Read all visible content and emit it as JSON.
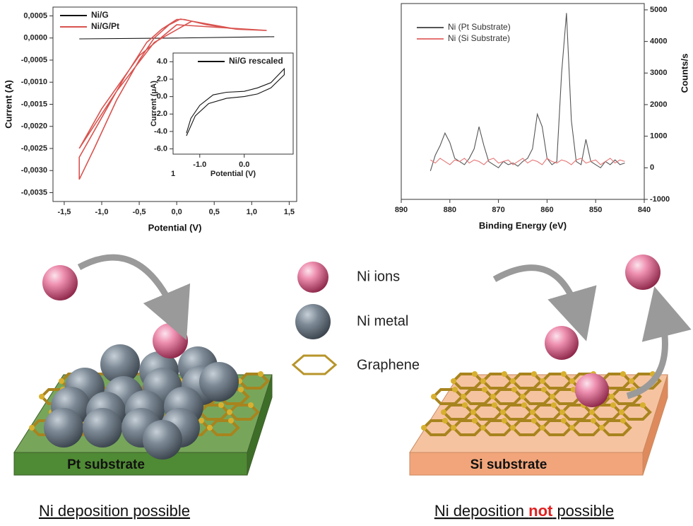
{
  "chart_data": [
    {
      "type": "line",
      "xlabel": "Potential (V)",
      "ylabel": "Current (A)",
      "xlim": [
        -1.65,
        1.6
      ],
      "xticks": [
        {
          "value": -1.5,
          "label": "-1,5"
        },
        {
          "value": -1.0,
          "label": "-1,0"
        },
        {
          "value": -0.5,
          "label": "-0,5"
        },
        {
          "value": 0,
          "label": "0,0"
        },
        {
          "value": 0.5,
          "label": "0,5"
        },
        {
          "value": 1.0,
          "label": "1,0"
        },
        {
          "value": 1.5,
          "label": "1,5"
        }
      ],
      "ylim": [
        -0.0037,
        0.0007
      ],
      "yticks": [
        {
          "value": 0.0005,
          "label": "0,0005"
        },
        {
          "value": 0,
          "label": "0,0000"
        },
        {
          "value": -0.0005,
          "label": "-0,0005"
        },
        {
          "value": -0.001,
          "label": "-0,0010"
        },
        {
          "value": -0.0015,
          "label": "-0,0015"
        },
        {
          "value": -0.002,
          "label": "-0,0020"
        },
        {
          "value": -0.0025,
          "label": "-0,0025"
        },
        {
          "value": -0.003,
          "label": "-0,0030"
        },
        {
          "value": -0.0035,
          "label": "-0,0035"
        }
      ],
      "legend": "upper left",
      "series": [
        {
          "name": "Ni/G",
          "color": "#111111",
          "x": [
            -1.3,
            0,
            1.3
          ],
          "values": [
            -2e-05,
            0,
            3e-05
          ]
        },
        {
          "name": "Ni/G/Pt",
          "color": "#d9534f",
          "x": [
            1.2,
            0.8,
            0.4,
            0.1,
            0.0,
            -0.2,
            -0.4,
            -0.7,
            -1.0,
            -1.3,
            -1.3,
            -1.1,
            -0.8,
            -0.5,
            -0.3,
            -0.1,
            0.05,
            0.3,
            0.7,
            1.2,
            0.8,
            0.2,
            -0.3,
            -0.8,
            -1.3,
            -1.0,
            -0.5,
            0.0,
            1.2
          ],
          "values": [
            0.00017,
            0.0002,
            0.0003,
            0.00042,
            0.00042,
            0.0002,
            -0.0001,
            -0.0009,
            -0.0018,
            -0.0027,
            -0.0032,
            -0.0025,
            -0.0014,
            -0.0005,
            0.0,
            0.0003,
            0.00043,
            0.00035,
            0.00022,
            0.00017,
            0.0002,
            0.00038,
            -0.0001,
            -0.0012,
            -0.0025,
            -0.0016,
            -0.0004,
            0.0003,
            0.00017
          ]
        }
      ]
    },
    {
      "type": "line",
      "xlabel": "Potential (V)",
      "ylabel": "Current (μA)",
      "annotation": "1",
      "xlim": [
        -1.6,
        1.1
      ],
      "xticks": [
        {
          "value": -1.0,
          "label": "-1.0"
        },
        {
          "value": 0,
          "label": "0.0"
        }
      ],
      "ylim": [
        -6.6,
        5
      ],
      "yticks": [
        {
          "value": 4,
          "label": "4.0"
        },
        {
          "value": 2,
          "label": "2.0"
        },
        {
          "value": 0,
          "label": "0.0"
        },
        {
          "value": -2,
          "label": "-2.0"
        },
        {
          "value": -4,
          "label": "-4.0"
        },
        {
          "value": -6,
          "label": "-6.0"
        }
      ],
      "legend": "upper right",
      "series": [
        {
          "name": "Ni/G rescaled",
          "color": "#111111",
          "x": [
            -1.3,
            -1.2,
            -1.0,
            -0.7,
            -0.4,
            0.0,
            0.3,
            0.6,
            0.9,
            0.9,
            0.6,
            0.3,
            0.0,
            -0.4,
            -0.8,
            -1.1,
            -1.3
          ],
          "values": [
            -4.2,
            -2.5,
            -1.0,
            0.2,
            0.5,
            0.6,
            1.0,
            1.6,
            3.2,
            2.5,
            1.0,
            0.3,
            0.0,
            -0.2,
            -0.8,
            -2.2,
            -4.5
          ]
        }
      ]
    },
    {
      "type": "line",
      "xlabel": "Binding Energy (eV)",
      "y2label": "Counts/s",
      "xlim": [
        890,
        840
      ],
      "xticks": [
        890,
        880,
        870,
        860,
        850,
        840
      ],
      "y2lim": [
        -1000,
        5200
      ],
      "y2ticks": [
        -1000,
        0,
        1000,
        2000,
        3000,
        4000,
        5000
      ],
      "legend": "upper left",
      "x": [
        884,
        883,
        882,
        881,
        880,
        879,
        878,
        877,
        876,
        875,
        874,
        873,
        872,
        871,
        870,
        869,
        868,
        867,
        866,
        865,
        864,
        863,
        862,
        861,
        860,
        859,
        858,
        857,
        856,
        855,
        854,
        853,
        852,
        851,
        850,
        849,
        848,
        847,
        846,
        845,
        844
      ],
      "series": [
        {
          "name": "Ni (Pt Substrate)",
          "color": "#555555",
          "axis": "y2",
          "values": [
            -100,
            400,
            700,
            1100,
            800,
            300,
            200,
            100,
            300,
            600,
            1300,
            700,
            200,
            100,
            0,
            200,
            100,
            150,
            50,
            200,
            300,
            600,
            1700,
            1300,
            300,
            100,
            200,
            3000,
            4900,
            1500,
            200,
            100,
            900,
            200,
            100,
            0,
            200,
            100,
            250,
            100,
            150
          ]
        },
        {
          "name": "Ni (Si Substrate)",
          "color": "#e57373",
          "axis": "y2",
          "values": [
            250,
            150,
            300,
            200,
            100,
            250,
            200,
            300,
            150,
            250,
            200,
            100,
            250,
            300,
            150,
            200,
            250,
            100,
            200,
            300,
            150,
            250,
            200,
            100,
            300,
            200,
            150,
            250,
            200,
            100,
            250,
            300,
            150,
            200,
            250,
            100,
            200,
            300,
            150,
            250,
            200
          ]
        }
      ]
    }
  ],
  "legend_items": [
    "Ni ions",
    "Ni metal",
    "Graphene"
  ],
  "substrates": [
    "Pt substrate",
    "Si substrate"
  ],
  "captions": {
    "left": "Ni deposition possible",
    "right": {
      "before": "Ni deposition ",
      "emphasis": "not",
      "after": " possible"
    }
  }
}
